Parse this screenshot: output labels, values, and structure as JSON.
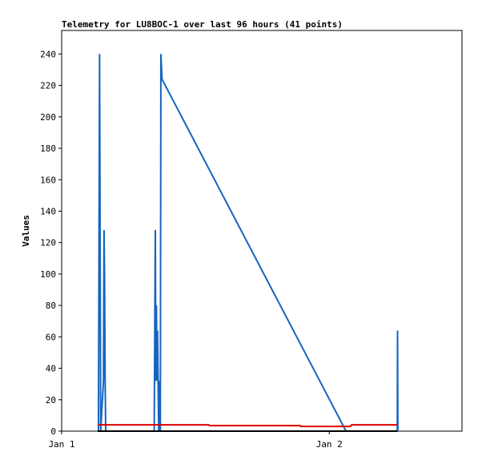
{
  "chart_data": {
    "type": "line",
    "title": "Telemetry for LU8BOC-1 over last 96 hours (41 points)",
    "y_label": "Values",
    "xlim": [
      0,
      35.9
    ],
    "xticks": [
      {
        "value": 0,
        "label": "Jan 1"
      },
      {
        "value": 24,
        "label": "Jan 2"
      }
    ],
    "ylim": [
      0,
      255
    ],
    "yticks": [
      0,
      20,
      40,
      60,
      80,
      100,
      120,
      140,
      160,
      180,
      200,
      220,
      240
    ],
    "grid": false,
    "series": [
      {
        "color": "#1565c0",
        "x": [
          3.3,
          3.35,
          3.4,
          3.45,
          3.5,
          3.75,
          3.8,
          3.85,
          3.9,
          3.95,
          8.3,
          8.35,
          8.4,
          8.45,
          8.5,
          8.55,
          8.6,
          8.7,
          8.8,
          8.85,
          8.9,
          8.95,
          9.0,
          25.5,
          30.1,
          30.12,
          30.15
        ],
        "values": [
          0,
          120,
          240,
          120,
          0,
          32,
          128,
          96,
          32,
          0,
          0,
          64,
          128,
          32,
          80,
          32,
          64,
          0,
          32,
          0,
          240,
          232,
          224,
          0,
          0,
          64,
          0
        ]
      },
      {
        "color": "#e00000",
        "x": [
          3.23,
          13.2,
          13.25,
          21.4,
          21.45,
          25.9,
          26.0,
          30.1
        ],
        "values": [
          4,
          4,
          3.5,
          3.5,
          3,
          3,
          4,
          4
        ]
      },
      {
        "color": "#000000",
        "x": [
          3.23,
          30.1
        ],
        "values": [
          0,
          0
        ]
      }
    ]
  }
}
